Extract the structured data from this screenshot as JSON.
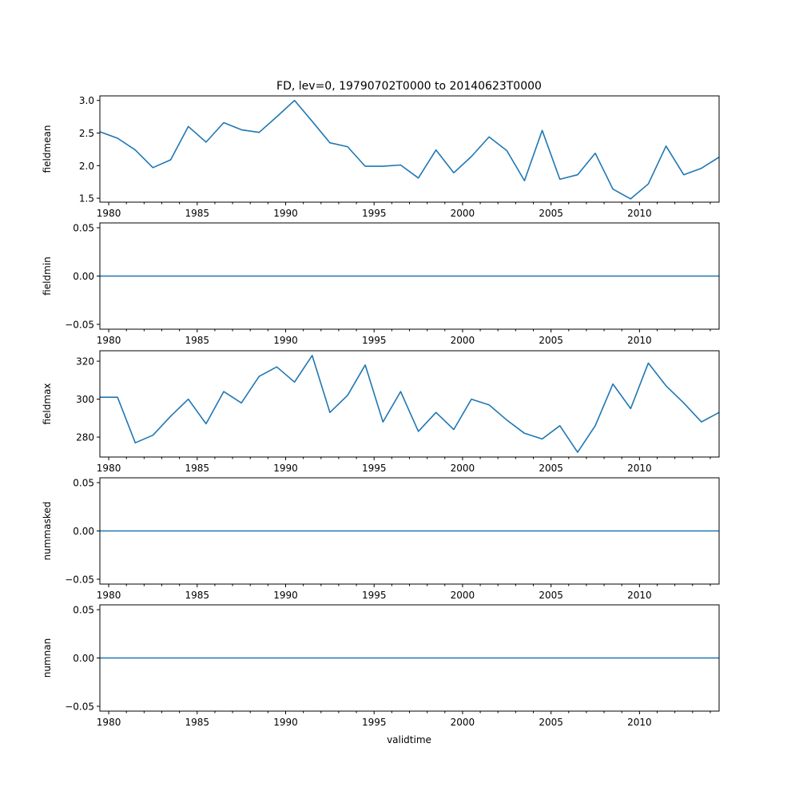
{
  "chart_data": {
    "type": "line",
    "title": "FD, lev=0, 19790702T0000 to 20140623T0000",
    "xlabel": "validtime",
    "xlim": [
      1979.5,
      2014.5
    ],
    "x_major_ticks": [
      1980,
      1985,
      1990,
      1995,
      2000,
      2005,
      2010
    ],
    "x_minor_ticks": [
      1981,
      1982,
      1983,
      1984,
      1986,
      1987,
      1988,
      1989,
      1991,
      1992,
      1993,
      1994,
      1996,
      1997,
      1998,
      1999,
      2001,
      2002,
      2003,
      2004,
      2006,
      2007,
      2008,
      2009,
      2011,
      2012,
      2013,
      2014
    ],
    "x": [
      1979.5,
      1980.5,
      1981.5,
      1982.5,
      1983.5,
      1984.5,
      1985.5,
      1986.5,
      1987.5,
      1988.5,
      1989.5,
      1990.5,
      1991.5,
      1992.5,
      1993.5,
      1994.5,
      1995.5,
      1996.5,
      1997.5,
      1998.5,
      1999.5,
      2000.5,
      2001.5,
      2002.5,
      2003.5,
      2004.5,
      2005.5,
      2006.5,
      2007.5,
      2008.5,
      2009.5,
      2010.5,
      2011.5,
      2012.5,
      2013.5,
      2014.5
    ],
    "color": "#1f77b4",
    "panels": [
      {
        "ylabel": "fieldmean",
        "ylim": [
          1.44,
          3.07
        ],
        "yticks": [
          "1.5",
          "2.0",
          "2.5",
          "3.0"
        ],
        "ytick_values": [
          1.5,
          2.0,
          2.5,
          3.0
        ],
        "values": [
          2.52,
          2.42,
          2.24,
          1.97,
          2.09,
          2.6,
          2.36,
          2.66,
          2.55,
          2.51,
          2.75,
          3.0,
          2.68,
          2.35,
          2.29,
          1.99,
          1.99,
          2.01,
          1.81,
          2.24,
          1.89,
          2.14,
          2.44,
          2.23,
          1.77,
          2.54,
          1.79,
          1.86,
          2.19,
          1.64,
          1.49,
          1.72,
          2.3,
          1.86,
          1.96,
          2.13
        ]
      },
      {
        "ylabel": "fieldmin",
        "ylim": [
          -0.055,
          0.055
        ],
        "yticks": [
          "−0.05",
          "0.00",
          "0.05"
        ],
        "ytick_values": [
          -0.05,
          0.0,
          0.05
        ],
        "values": [
          0,
          0,
          0,
          0,
          0,
          0,
          0,
          0,
          0,
          0,
          0,
          0,
          0,
          0,
          0,
          0,
          0,
          0,
          0,
          0,
          0,
          0,
          0,
          0,
          0,
          0,
          0,
          0,
          0,
          0,
          0,
          0,
          0,
          0,
          0,
          0
        ]
      },
      {
        "ylabel": "fieldmax",
        "ylim": [
          269.5,
          325.5
        ],
        "yticks": [
          "280",
          "300",
          "320"
        ],
        "ytick_values": [
          280,
          300,
          320
        ],
        "values": [
          301,
          301,
          277,
          281,
          291,
          300,
          287,
          304,
          298,
          312,
          317,
          309,
          323,
          293,
          302,
          318,
          288,
          304,
          283,
          293,
          284,
          300,
          297,
          289,
          282,
          279,
          286,
          272,
          286,
          308,
          295,
          319,
          307,
          298,
          288,
          293
        ]
      },
      {
        "ylabel": "nummasked",
        "ylim": [
          -0.055,
          0.055
        ],
        "yticks": [
          "−0.05",
          "0.00",
          "0.05"
        ],
        "ytick_values": [
          -0.05,
          0.0,
          0.05
        ],
        "values": [
          0,
          0,
          0,
          0,
          0,
          0,
          0,
          0,
          0,
          0,
          0,
          0,
          0,
          0,
          0,
          0,
          0,
          0,
          0,
          0,
          0,
          0,
          0,
          0,
          0,
          0,
          0,
          0,
          0,
          0,
          0,
          0,
          0,
          0,
          0,
          0
        ]
      },
      {
        "ylabel": "numnan",
        "ylim": [
          -0.055,
          0.055
        ],
        "yticks": [
          "−0.05",
          "0.00",
          "0.05"
        ],
        "ytick_values": [
          -0.05,
          0.0,
          0.05
        ],
        "values": [
          0,
          0,
          0,
          0,
          0,
          0,
          0,
          0,
          0,
          0,
          0,
          0,
          0,
          0,
          0,
          0,
          0,
          0,
          0,
          0,
          0,
          0,
          0,
          0,
          0,
          0,
          0,
          0,
          0,
          0,
          0,
          0,
          0,
          0,
          0,
          0
        ]
      }
    ]
  }
}
